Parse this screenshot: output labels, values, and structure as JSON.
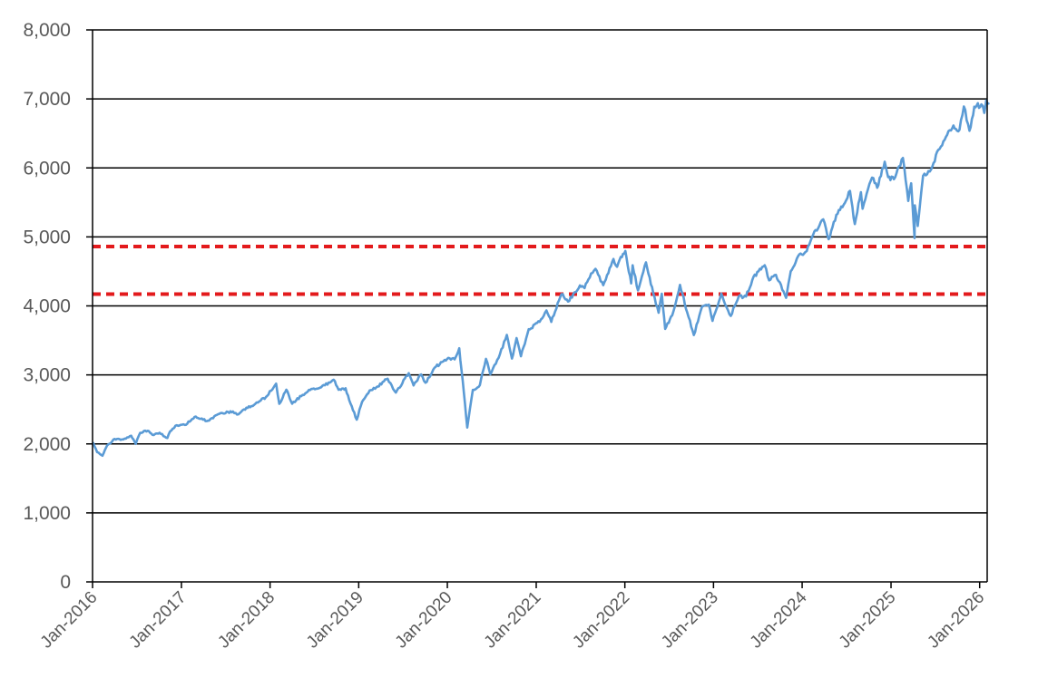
{
  "chart_data": {
    "type": "line",
    "title": "",
    "xlabel": "",
    "ylabel": "",
    "ylim": [
      0,
      8000
    ],
    "xlim": [
      "Jan-2016",
      "Feb-2026"
    ],
    "grid": "horizontal",
    "y_ticks": [
      "0",
      "1,000",
      "2,000",
      "3,000",
      "4,000",
      "5,000",
      "6,000",
      "7,000",
      "8,000"
    ],
    "x_ticks": [
      "Jan-2016",
      "Jan-2017",
      "Jan-2018",
      "Jan-2019",
      "Jan-2020",
      "Jan-2021",
      "Jan-2022",
      "Jan-2023",
      "Jan-2024",
      "Jan-2025",
      "Jan-2026"
    ],
    "series": [
      {
        "color": "#5b9bd5",
        "points": [
          [
            "2016-01-04",
            2012
          ],
          [
            "2016-01-20",
            1880
          ],
          [
            "2016-02-11",
            1829
          ],
          [
            "2016-03-01",
            1978
          ],
          [
            "2016-04-01",
            2072
          ],
          [
            "2016-05-01",
            2065
          ],
          [
            "2016-06-08",
            2119
          ],
          [
            "2016-06-27",
            2000
          ],
          [
            "2016-07-15",
            2161
          ],
          [
            "2016-08-15",
            2190
          ],
          [
            "2016-09-09",
            2128
          ],
          [
            "2016-10-03",
            2161
          ],
          [
            "2016-11-04",
            2085
          ],
          [
            "2016-11-15",
            2180
          ],
          [
            "2016-12-13",
            2271
          ],
          [
            "2017-01-15",
            2275
          ],
          [
            "2017-03-01",
            2396
          ],
          [
            "2017-04-15",
            2330
          ],
          [
            "2017-06-01",
            2430
          ],
          [
            "2017-08-01",
            2470
          ],
          [
            "2017-08-18",
            2425
          ],
          [
            "2017-09-15",
            2500
          ],
          [
            "2017-11-01",
            2580
          ],
          [
            "2017-12-15",
            2680
          ],
          [
            "2018-01-26",
            2873
          ],
          [
            "2018-02-08",
            2581
          ],
          [
            "2018-03-09",
            2786
          ],
          [
            "2018-04-02",
            2582
          ],
          [
            "2018-05-15",
            2710
          ],
          [
            "2018-06-15",
            2780
          ],
          [
            "2018-07-15",
            2800
          ],
          [
            "2018-08-15",
            2850
          ],
          [
            "2018-09-20",
            2930
          ],
          [
            "2018-10-10",
            2785
          ],
          [
            "2018-11-08",
            2806
          ],
          [
            "2018-11-23",
            2633
          ],
          [
            "2018-12-24",
            2351
          ],
          [
            "2019-01-15",
            2610
          ],
          [
            "2019-02-15",
            2775
          ],
          [
            "2019-03-15",
            2822
          ],
          [
            "2019-04-30",
            2945
          ],
          [
            "2019-06-03",
            2744
          ],
          [
            "2019-07-26",
            3025
          ],
          [
            "2019-08-15",
            2847
          ],
          [
            "2019-09-15",
            3006
          ],
          [
            "2019-10-03",
            2887
          ],
          [
            "2019-11-15",
            3120
          ],
          [
            "2019-12-31",
            3230
          ],
          [
            "2020-01-31",
            3225
          ],
          [
            "2020-02-19",
            3386
          ],
          [
            "2020-03-09",
            2746
          ],
          [
            "2020-03-23",
            2237
          ],
          [
            "2020-04-15",
            2783
          ],
          [
            "2020-05-14",
            2852
          ],
          [
            "2020-06-08",
            3232
          ],
          [
            "2020-06-26",
            3009
          ],
          [
            "2020-07-30",
            3246
          ],
          [
            "2020-09-02",
            3580
          ],
          [
            "2020-09-23",
            3237
          ],
          [
            "2020-10-12",
            3534
          ],
          [
            "2020-10-30",
            3270
          ],
          [
            "2020-12-01",
            3662
          ],
          [
            "2021-01-15",
            3768
          ],
          [
            "2021-02-12",
            3934
          ],
          [
            "2021-03-04",
            3768
          ],
          [
            "2021-04-15",
            4170
          ],
          [
            "2021-05-12",
            4063
          ],
          [
            "2021-06-30",
            4297
          ],
          [
            "2021-07-19",
            4258
          ],
          [
            "2021-08-15",
            4470
          ],
          [
            "2021-09-02",
            4537
          ],
          [
            "2021-10-04",
            4300
          ],
          [
            "2021-11-15",
            4680
          ],
          [
            "2021-11-30",
            4567
          ],
          [
            "2021-12-15",
            4710
          ],
          [
            "2022-01-03",
            4796
          ],
          [
            "2022-01-27",
            4326
          ],
          [
            "2022-02-02",
            4589
          ],
          [
            "2022-02-24",
            4225
          ],
          [
            "2022-03-29",
            4631
          ],
          [
            "2022-04-28",
            4183
          ],
          [
            "2022-05-20",
            3901
          ],
          [
            "2022-06-02",
            4177
          ],
          [
            "2022-06-16",
            3666
          ],
          [
            "2022-07-15",
            3863
          ],
          [
            "2022-08-16",
            4305
          ],
          [
            "2022-09-15",
            3902
          ],
          [
            "2022-10-12",
            3577
          ],
          [
            "2022-11-15",
            3991
          ],
          [
            "2022-12-13",
            4019
          ],
          [
            "2022-12-28",
            3783
          ],
          [
            "2023-02-02",
            4179
          ],
          [
            "2023-03-13",
            3855
          ],
          [
            "2023-04-15",
            4137
          ],
          [
            "2023-05-15",
            4136
          ],
          [
            "2023-06-15",
            4425
          ],
          [
            "2023-07-31",
            4589
          ],
          [
            "2023-08-18",
            4370
          ],
          [
            "2023-09-15",
            4450
          ],
          [
            "2023-10-27",
            4117
          ],
          [
            "2023-11-15",
            4502
          ],
          [
            "2023-12-15",
            4719
          ],
          [
            "2024-01-15",
            4783
          ],
          [
            "2024-02-15",
            5029
          ],
          [
            "2024-03-28",
            5254
          ],
          [
            "2024-04-19",
            4967
          ],
          [
            "2024-05-21",
            5321
          ],
          [
            "2024-06-15",
            5431
          ],
          [
            "2024-07-16",
            5667
          ],
          [
            "2024-08-05",
            5186
          ],
          [
            "2024-08-30",
            5648
          ],
          [
            "2024-09-06",
            5408
          ],
          [
            "2024-10-15",
            5860
          ],
          [
            "2024-11-05",
            5712
          ],
          [
            "2024-12-06",
            6090
          ],
          [
            "2024-12-20",
            5867
          ],
          [
            "2025-01-13",
            5836
          ],
          [
            "2025-02-19",
            6144
          ],
          [
            "2025-03-13",
            5521
          ],
          [
            "2025-03-25",
            5777
          ],
          [
            "2025-04-08",
            4982
          ],
          [
            "2025-04-09",
            5457
          ],
          [
            "2025-04-21",
            5158
          ],
          [
            "2025-05-13",
            5886
          ],
          [
            "2025-06-15",
            5977
          ],
          [
            "2025-07-15",
            6263
          ],
          [
            "2025-08-15",
            6449
          ],
          [
            "2025-09-15",
            6615
          ],
          [
            "2025-10-10",
            6552
          ],
          [
            "2025-10-28",
            6890
          ],
          [
            "2025-11-20",
            6538
          ],
          [
            "2025-12-10",
            6887
          ],
          [
            "2026-01-08",
            6921
          ],
          [
            "2026-01-20",
            6797
          ],
          [
            "2026-01-28",
            6978
          ],
          [
            "2026-02-06",
            6932
          ]
        ]
      }
    ],
    "reference_lines": [
      {
        "value": 4860,
        "color": "#e31a1c",
        "style": "dashed"
      },
      {
        "value": 4170,
        "color": "#e31a1c",
        "style": "dashed"
      }
    ]
  }
}
